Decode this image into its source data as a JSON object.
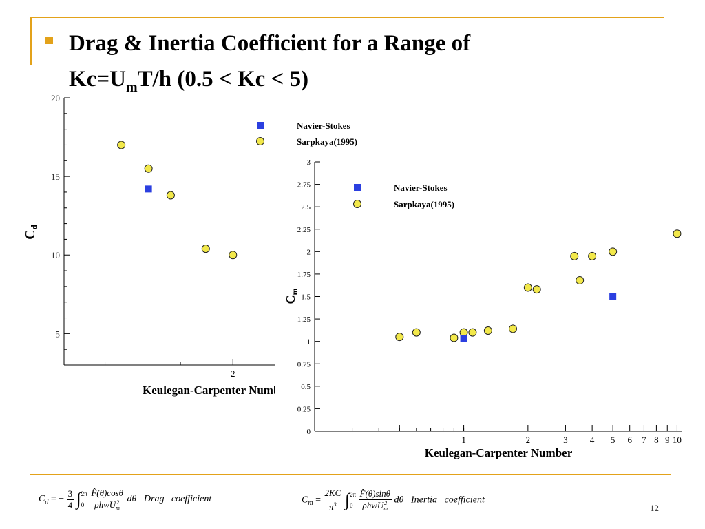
{
  "slide": {
    "title_line1": "Drag & Inertia Coefficient for a Range of",
    "title_line2_pre": "Kc=U",
    "title_line2_sub": "m",
    "title_line2_post": "T/h (0.5 < Kc < 5)",
    "page_number": "12",
    "accent_color": "#E3A21A"
  },
  "footer": {
    "cd_lhs": "C",
    "cd_lhs_sub": "d",
    "cd_coef": "= −",
    "cd_frac_num": "3",
    "cd_frac_den": "4",
    "cd_int_upper": "2π",
    "cd_int_lower": "0",
    "cd_num": "F̂(θ)cosθ",
    "cd_den": "ρhwU",
    "cd_den_sup": "2",
    "cd_den_sub": "m",
    "cd_tail": "dθ",
    "cd_label": "Drag   coefficient",
    "cm_lhs": "C",
    "cm_lhs_sub": "m",
    "cm_eq": "=",
    "cm_frac_num": "2KC",
    "cm_frac_den": "π",
    "cm_frac_den_sup": "3",
    "cm_int_upper": "2π",
    "cm_int_lower": "0",
    "cm_num": "F̂(θ)sinθ",
    "cm_den": "ρhwU",
    "cm_den_sup": "2",
    "cm_den_sub": "m",
    "cm_tail": "dθ",
    "cm_label": "Inertia   coefficient"
  },
  "chart_data": [
    {
      "type": "scatter",
      "xlabel": "Keulegan-Carpenter Number",
      "ylabel": "C",
      "ylabel_sub": "d",
      "xscale": "log",
      "yticks": [
        "5",
        "10",
        "15",
        "20"
      ],
      "xtick_labels": [
        "2"
      ],
      "ylim": [
        3,
        20
      ],
      "legend_placement": "top-right",
      "series": [
        {
          "name": "Navier-Stokes",
          "color": "#2B3FE0",
          "marker": "square",
          "x": [
            1.0
          ],
          "y": [
            14.2
          ]
        },
        {
          "name": "Sarpkaya(1995)",
          "color": "#F2E84A",
          "marker": "circle",
          "x": [
            0.8,
            1.0,
            1.2,
            1.6,
            2.0
          ],
          "y": [
            17.0,
            15.5,
            13.8,
            10.4,
            10.0
          ]
        }
      ],
      "legend_entries": [
        "Navier-Stokes",
        "Sarpkaya(1995)"
      ]
    },
    {
      "type": "scatter",
      "xlabel": "Keulegan-Carpenter Number",
      "ylabel": "C",
      "ylabel_sub": "m",
      "xscale": "log",
      "xlim": [
        0.2,
        10.5
      ],
      "ylim": [
        0,
        3
      ],
      "yticks": [
        "0",
        "0.25",
        "0.5",
        "0.75",
        "1",
        "1.25",
        "1.5",
        "1.75",
        "2",
        "2.25",
        "2.5",
        "2.75",
        "3"
      ],
      "xtick_labels": [
        {
          "v": 1,
          "t": "1"
        },
        {
          "v": 2,
          "t": "2"
        },
        {
          "v": 3,
          "t": "3"
        },
        {
          "v": 4,
          "t": "4"
        },
        {
          "v": 5,
          "t": "5"
        },
        {
          "v": 6,
          "t": "6"
        },
        {
          "v": 7,
          "t": "7"
        },
        {
          "v": 8,
          "t": "8"
        },
        {
          "v": 9,
          "t": "9"
        },
        {
          "v": 10,
          "t": "10"
        }
      ],
      "legend_placement": "top-left",
      "series": [
        {
          "name": "Navier-Stokes",
          "color": "#2B3FE0",
          "marker": "square",
          "x": [
            1.0,
            5.0
          ],
          "y": [
            1.03,
            1.5
          ]
        },
        {
          "name": "Sarpkaya(1995)",
          "color": "#F2E84A",
          "marker": "circle",
          "x": [
            0.5,
            0.6,
            0.9,
            1.0,
            1.1,
            1.3,
            1.7,
            2.0,
            2.2,
            3.3,
            3.5,
            4.0,
            5.0,
            10.0
          ],
          "y": [
            1.05,
            1.1,
            1.04,
            1.1,
            1.1,
            1.12,
            1.14,
            1.6,
            1.58,
            1.95,
            1.68,
            1.95,
            2.0,
            2.2
          ]
        }
      ],
      "legend_entries": [
        "Navier-Stokes",
        "Sarpkaya(1995)"
      ]
    }
  ]
}
